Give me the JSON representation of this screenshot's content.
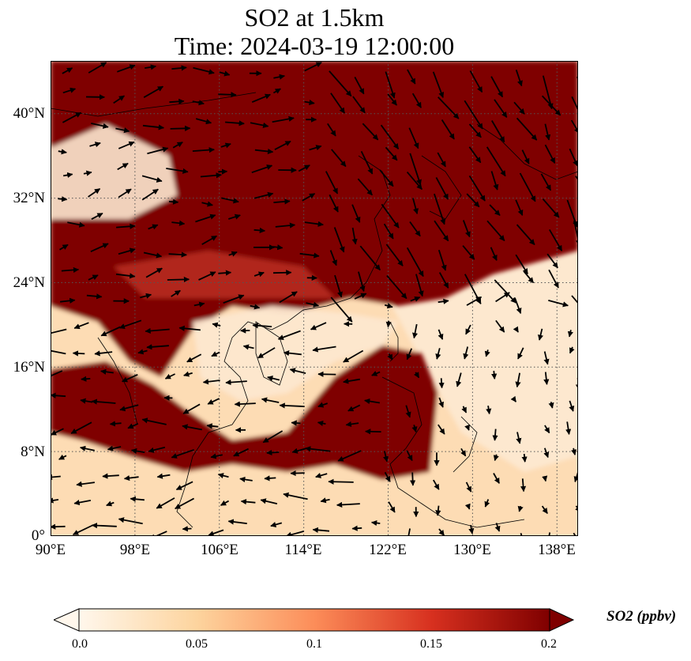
{
  "title": {
    "line1": "SO2 at 1.5km",
    "line2": "Time: 2024-03-19 12:00:00"
  },
  "map": {
    "variable": "SO2",
    "height": "1.5km",
    "projection": "PlateCarree",
    "lon_range": [
      90,
      140
    ],
    "lat_range": [
      0,
      45
    ],
    "gridlines": true,
    "lat_ticks": [
      "40°N",
      "32°N",
      "24°N",
      "16°N",
      "8°N",
      "0°"
    ],
    "lon_ticks": [
      "90°E",
      "98°E",
      "106°E",
      "114°E",
      "122°E",
      "130°E",
      "138°E"
    ],
    "overlay": "wind vectors (black arrows)",
    "colormap": "OrRd",
    "colors": {
      "low": "#fff7ec",
      "mid": "#fc8d59",
      "high": "#7f0000"
    }
  },
  "colorbar": {
    "label": "SO2 (ppbv)",
    "ticks": [
      "0.0",
      "0.05",
      "0.1",
      "0.15",
      "0.2"
    ],
    "range": [
      0.0,
      0.2
    ],
    "extend": "both"
  }
}
